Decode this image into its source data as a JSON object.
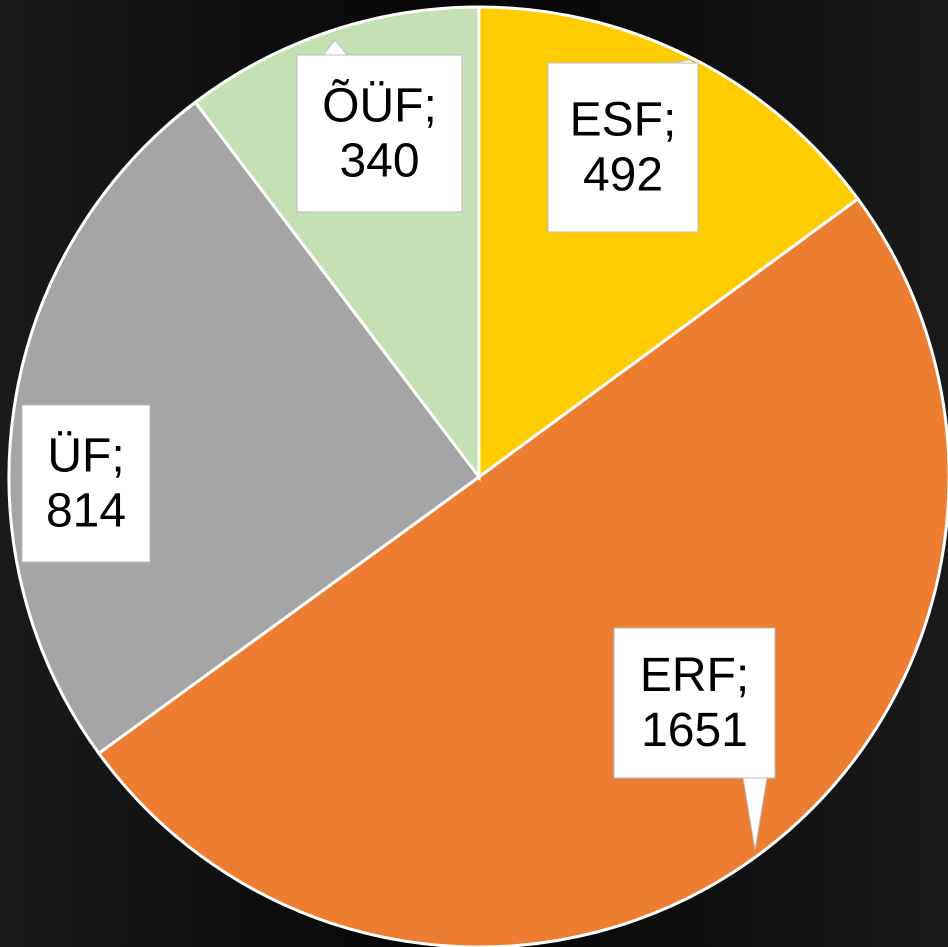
{
  "chart_data": {
    "type": "pie",
    "categories": [
      "ESF",
      "ERF",
      "ÜF",
      "ÕÜF"
    ],
    "values": [
      492,
      1651,
      814,
      340
    ],
    "colors": [
      "#ffcc00",
      "#ed7d31",
      "#a5a5a5",
      "#c5e0b4"
    ],
    "label_separator": ";"
  }
}
